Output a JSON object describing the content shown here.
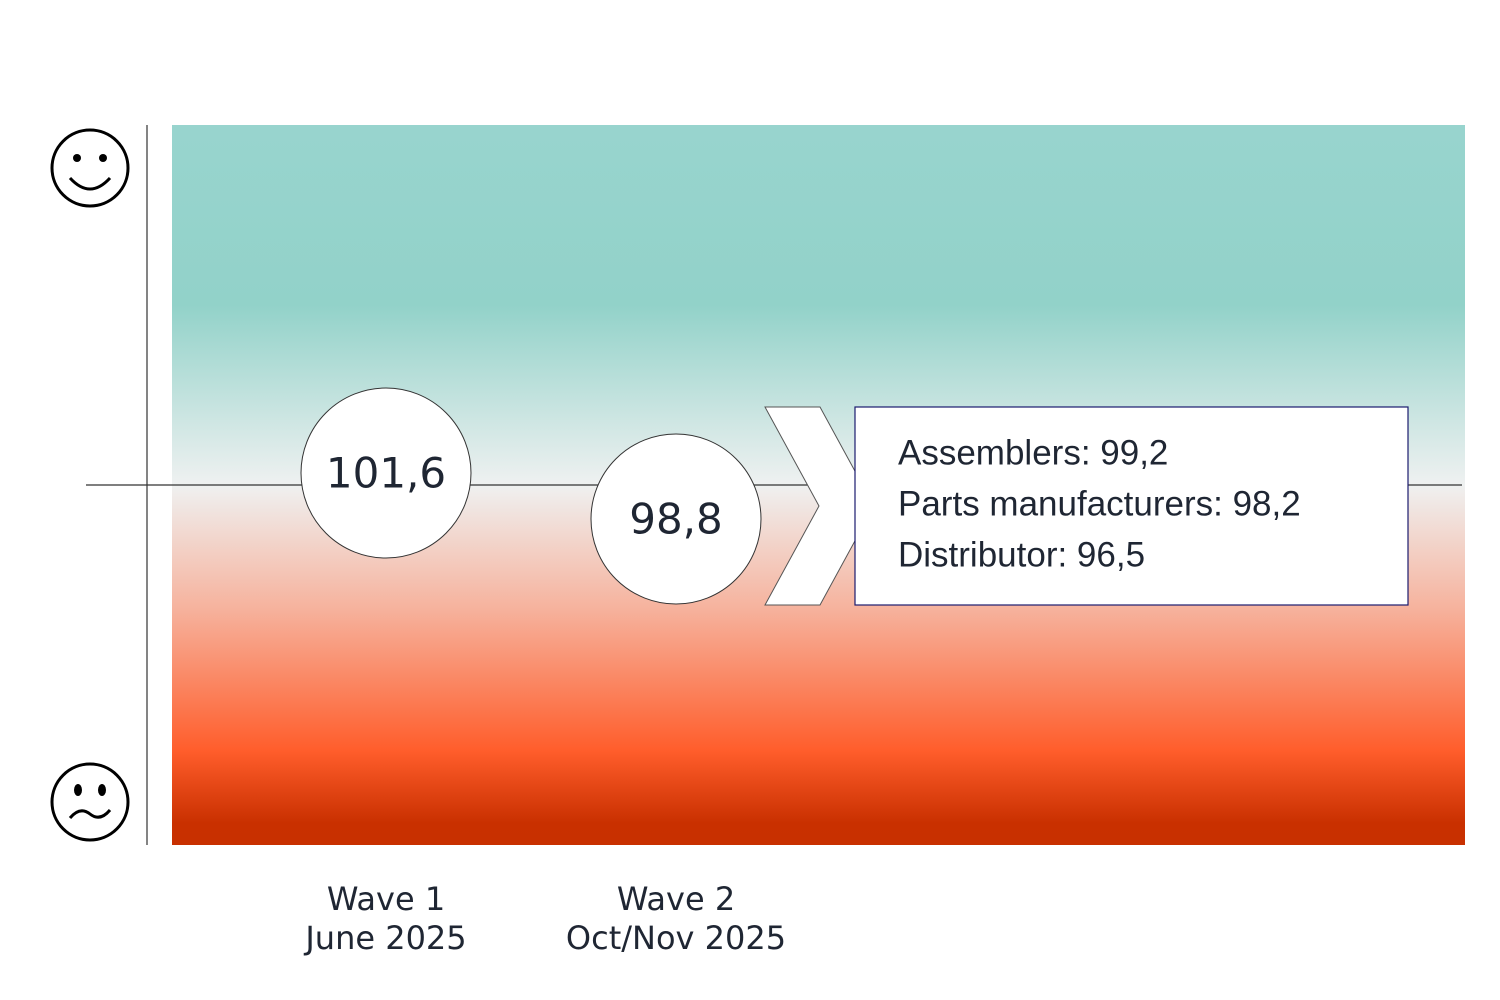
{
  "waves": [
    {
      "name": "Wave 1",
      "date": "June 2025",
      "value": "101,6"
    },
    {
      "name": "Wave 2",
      "date": "Oct/Nov 2025",
      "value": "98,8"
    }
  ],
  "breakdown": [
    "Assemblers: 99,2",
    "Parts manufacturers: 98,2",
    "Distributor: 96,5"
  ]
}
